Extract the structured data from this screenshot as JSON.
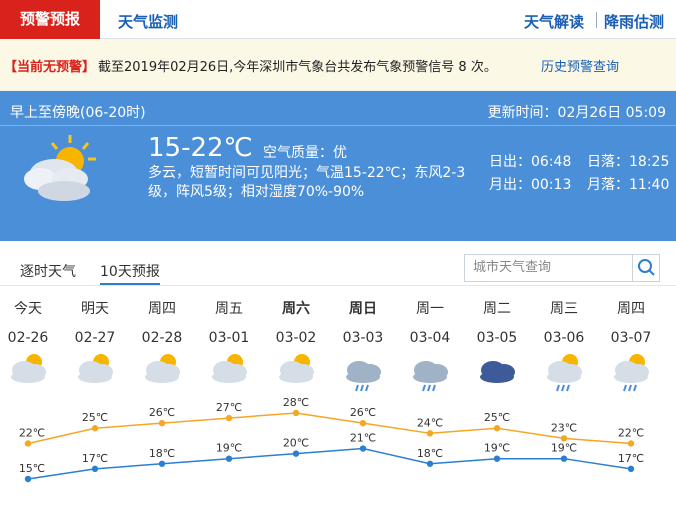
{
  "nav": {
    "tabs": [
      "预警预报",
      "天气监测"
    ],
    "links": [
      "天气解读",
      "降雨估测"
    ]
  },
  "alert": {
    "status": "【当前无预警】",
    "message": "截至2019年02月26日,今年深圳市气象台共发布气象预警信号 8 次。",
    "link": "历史预警查询"
  },
  "current": {
    "period": "早上至傍晚(06-20时)",
    "updated": "更新时间：02月26日 05:09",
    "temperature": "15-22℃",
    "air_quality": "空气质量：优",
    "description": "多云，短暂时间可见阳光；气温15-22℃；东风2-3级，阵风5级；相对湿度70%-90%",
    "sun_moon": [
      "日出：06:48",
      "日落：18:25",
      "月出：00:13",
      "月落：11:40"
    ]
  },
  "tabs": [
    "逐时天气",
    "10天预报"
  ],
  "search_placeholder": "城市天气查询",
  "chart_data": {
    "type": "line",
    "weekdays": [
      "今天",
      "明天",
      "周四",
      "周五",
      "周六",
      "周日",
      "周一",
      "周二",
      "周三",
      "周四"
    ],
    "categories": [
      "02-26",
      "02-27",
      "02-28",
      "03-01",
      "03-02",
      "03-03",
      "03-04",
      "03-05",
      "03-06",
      "03-07"
    ],
    "series": [
      {
        "color": "#f5a623",
        "values": [
          22,
          25,
          26,
          27,
          28,
          26,
          24,
          25,
          23,
          22
        ],
        "value_labels": [
          "22℃",
          "25℃",
          "26℃",
          "27℃",
          "28℃",
          "26℃",
          "24℃",
          "25℃",
          "23℃",
          "22℃"
        ]
      },
      {
        "color": "#2a7fd0",
        "values": [
          15,
          17,
          18,
          19,
          20,
          21,
          18,
          19,
          19,
          17
        ],
        "value_labels": [
          "15℃",
          "17℃",
          "18℃",
          "19℃",
          "20℃",
          "21℃",
          "18℃",
          "19℃",
          "19℃",
          "17℃"
        ]
      }
    ]
  }
}
